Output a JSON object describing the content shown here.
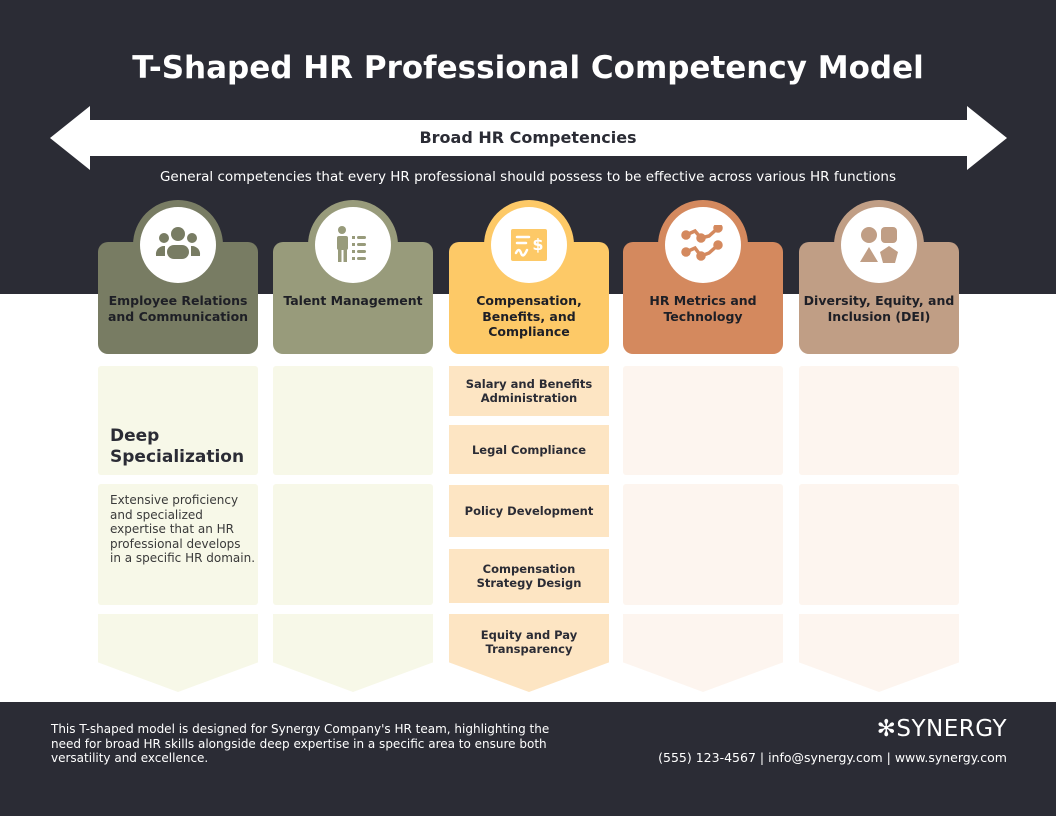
{
  "title": "T-Shaped HR Professional Competency Model",
  "broad": {
    "label": "Broad HR Competencies",
    "description": "General competencies that every HR professional should possess to be effective across various HR functions"
  },
  "deep": {
    "label": "Deep Specialization",
    "description": "Extensive proficiency and specialized expertise that an HR professional develops in a specific HR domain."
  },
  "columns": [
    {
      "label": "Employee Relations and Communication",
      "icon": "people-group-icon",
      "color": "#787c63",
      "light": "#f7f8e8"
    },
    {
      "label": "Talent Management",
      "icon": "person-list-icon",
      "color": "#989b7b",
      "light": "#f7f8e8"
    },
    {
      "label": "Compensation, Benefits, and Compliance",
      "icon": "receipt-dollar-icon",
      "color": "#fdc967",
      "light": "#fde5c3"
    },
    {
      "label": "HR Metrics and Technology",
      "icon": "line-chart-icon",
      "color": "#d4895e",
      "light": "#fdf5ef"
    },
    {
      "label": "Diversity, Equity, and Inclusion (DEI)",
      "icon": "shapes-icon",
      "color": "#c09e85",
      "light": "#fdf5ef"
    }
  ],
  "specialization_items": [
    "Salary and Benefits Administration",
    "Legal Compliance",
    "Policy Development",
    "Compensation Strategy Design",
    "Equity and Pay Transparency"
  ],
  "footer": {
    "note": "This T-shaped model is designed for Synergy Company's HR team, highlighting the need for broad HR skills alongside deep expertise in a specific area to ensure both versatility and excellence.",
    "logo": "SYNERGY",
    "contact": "(555) 123-4567 | info@synergy.com | www.synergy.com"
  }
}
